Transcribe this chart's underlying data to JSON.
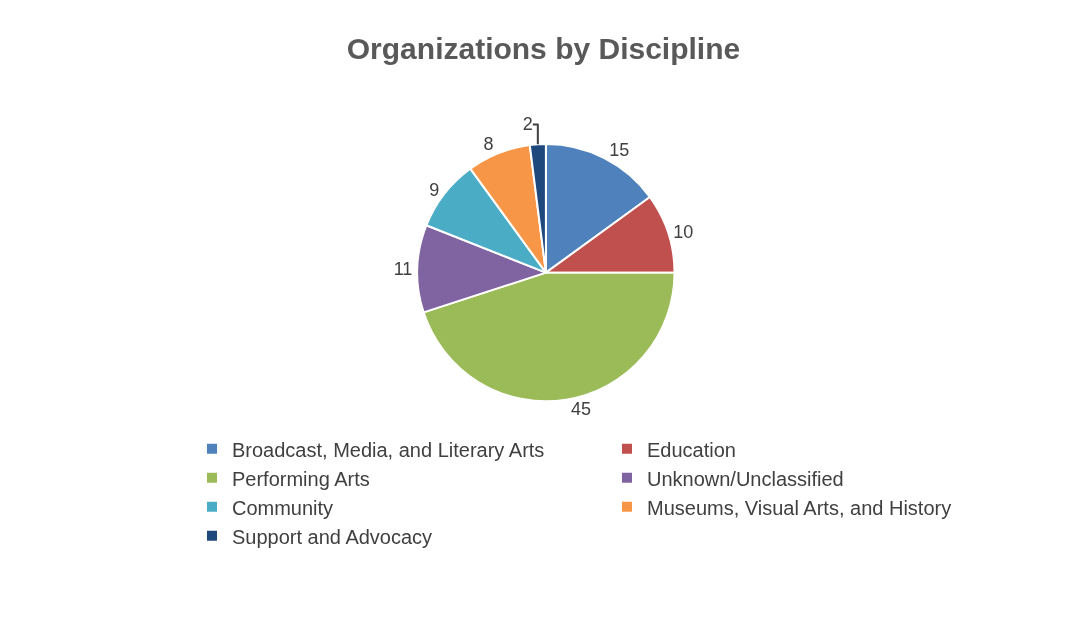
{
  "chart_data": {
    "type": "pie",
    "title": "Organizations by Discipline",
    "categories": [
      "Broadcast, Media, and Literary Arts",
      "Education",
      "Performing Arts",
      "Unknown/Unclassified",
      "Community",
      "Museums, Visual Arts, and History",
      "Support and Advocacy"
    ],
    "values": [
      15,
      10,
      45,
      11,
      9,
      8,
      2
    ],
    "colors": [
      "#4f81bd",
      "#c0504d",
      "#9bbb59",
      "#8064a2",
      "#4bacc6",
      "#f79646",
      "#1f497d"
    ],
    "data_labels": true,
    "legend": "bottom"
  }
}
